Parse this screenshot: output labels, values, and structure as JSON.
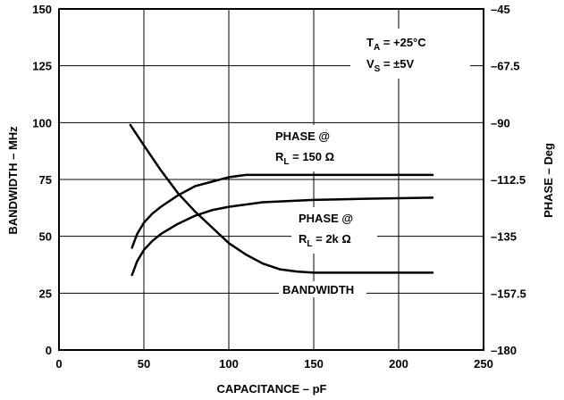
{
  "chart_data": {
    "type": "line",
    "xlabel": "CAPACITANCE – pF",
    "ylabel_left": "BANDWIDTH – MHz",
    "ylabel_right": "PHASE – Deg",
    "xlim": [
      0,
      250
    ],
    "ylim_left": [
      0,
      150
    ],
    "ylim_right": [
      -180,
      -45
    ],
    "x_ticks": [
      "0",
      "50",
      "100",
      "150",
      "200",
      "250"
    ],
    "y_left_ticks": [
      "0",
      "25",
      "50",
      "75",
      "100",
      "125",
      "150"
    ],
    "y_right_ticks": [
      "–180",
      "–157.5",
      "–135",
      "–112.5",
      "–90",
      "–67.5",
      "–45"
    ],
    "grid": true,
    "conditions": {
      "ta_main": "T",
      "ta_sub": "A",
      "ta_rest": " = +25°C",
      "vs_main": "V",
      "vs_sub": "S",
      "vs_rest": " = ±5V"
    },
    "series": [
      {
        "name": "BANDWIDTH",
        "axis": "left",
        "x": [
          42,
          50,
          60,
          70,
          80,
          90,
          100,
          110,
          120,
          130,
          140,
          150,
          175,
          200,
          220
        ],
        "y": [
          99,
          90,
          79,
          69,
          61,
          54,
          47,
          42,
          38,
          35.5,
          34.5,
          34,
          34,
          34,
          34
        ]
      },
      {
        "name": "PHASE @ R = 150Ω",
        "label_line1": "PHASE @",
        "label_main": "R",
        "label_sub": "L",
        "label_rest": " = 150 Ω",
        "axis": "left",
        "x": [
          43,
          46,
          50,
          55,
          60,
          70,
          80,
          90,
          100,
          110,
          120,
          150,
          220
        ],
        "y": [
          45,
          51,
          56,
          60,
          63,
          68,
          72,
          74,
          76,
          77,
          77,
          77,
          77
        ]
      },
      {
        "name": "PHASE @ R = 2kΩ",
        "label_line1": "PHASE @",
        "label_main": "R",
        "label_sub": "L",
        "label_rest": " = 2k Ω",
        "axis": "left",
        "x": [
          43,
          46,
          50,
          55,
          60,
          70,
          80,
          90,
          100,
          120,
          150,
          180,
          220
        ],
        "y": [
          33,
          39,
          44,
          48,
          51,
          55.5,
          59,
          61.5,
          63,
          65,
          66,
          66.5,
          67
        ]
      }
    ]
  }
}
